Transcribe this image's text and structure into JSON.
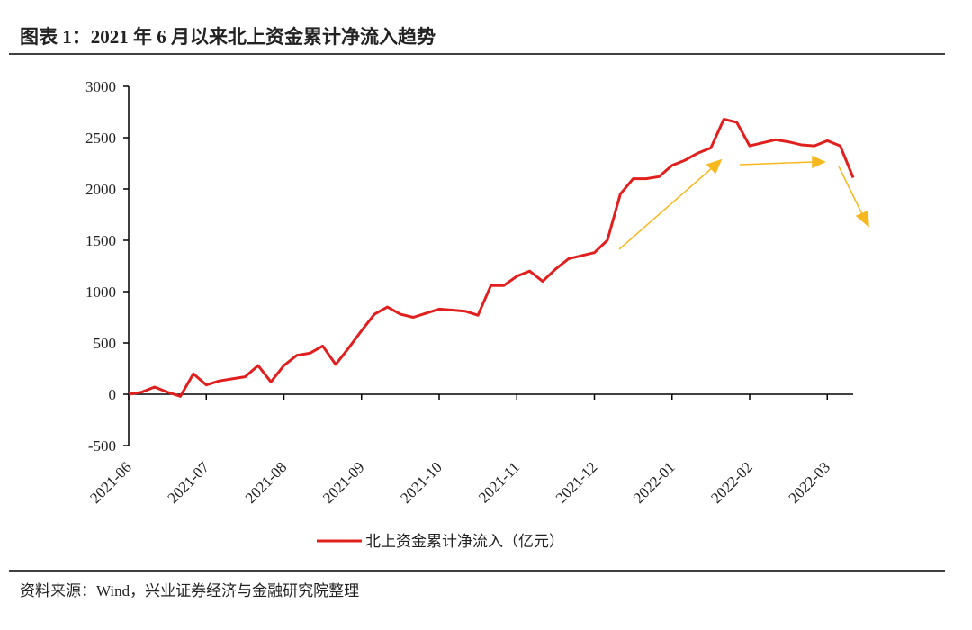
{
  "chart_data": {
    "type": "line",
    "title": "图表 1：2021 年 6 月以来北上资金累计净流入趋势",
    "source": "资料来源：Wind，兴业证券经济与金融研究院整理",
    "categories": [
      "2021-06",
      null,
      null,
      null,
      null,
      null,
      "2021-07",
      null,
      null,
      null,
      null,
      null,
      "2021-08",
      null,
      null,
      null,
      null,
      null,
      "2021-09",
      null,
      null,
      null,
      null,
      null,
      "2021-10",
      null,
      null,
      null,
      null,
      null,
      "2021-11",
      null,
      null,
      null,
      null,
      null,
      "2021-12",
      null,
      null,
      null,
      null,
      null,
      "2022-01",
      null,
      null,
      null,
      null,
      null,
      "2022-02",
      null,
      null,
      null,
      null,
      null,
      "2022-03",
      null,
      null
    ],
    "series": [
      {
        "name": "北上资金累计净流入（亿元）",
        "color": "#e0201e",
        "values": [
          0,
          20,
          70,
          20,
          -20,
          200,
          90,
          130,
          150,
          170,
          280,
          120,
          280,
          380,
          400,
          470,
          290,
          450,
          620,
          780,
          850,
          780,
          750,
          790,
          830,
          820,
          810,
          770,
          1060,
          1060,
          1150,
          1200,
          1100,
          1220,
          1320,
          1350,
          1380,
          1500,
          1950,
          2100,
          2100,
          2120,
          2230,
          2280,
          2350,
          2400,
          2680,
          2650,
          2420,
          2450,
          2480,
          2460,
          2430,
          2420,
          2470,
          2420,
          2110
        ]
      }
    ],
    "ylim": [
      -500,
      3000
    ],
    "yticks": [
      -500,
      0,
      500,
      1000,
      1500,
      2000,
      2500,
      3000
    ],
    "grid": false
  }
}
